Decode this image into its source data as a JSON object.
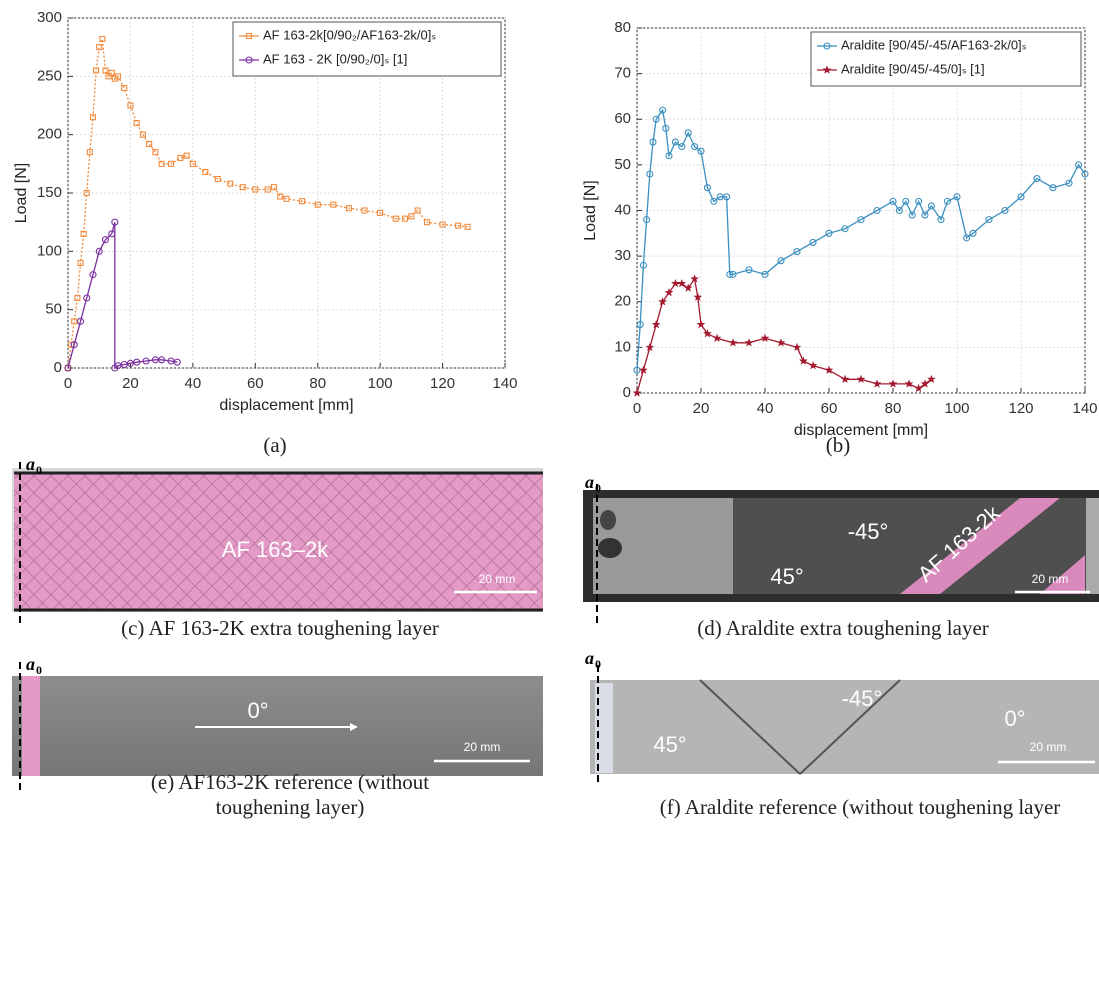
{
  "chart_data": [
    {
      "type": "line",
      "xlabel": "displacement [mm]",
      "ylabel": "Load [N]",
      "xlim": [
        0,
        140
      ],
      "xticks": [
        0,
        20,
        40,
        60,
        80,
        100,
        120,
        140
      ],
      "ylim": [
        0,
        300
      ],
      "yticks": [
        0,
        50,
        100,
        150,
        200,
        250,
        300
      ],
      "grid": true,
      "legend": "upper right",
      "series": [
        {
          "name": "AF 163-2k[0/90₂/AF163-2k/0]ₛ",
          "color": "#f08a3c",
          "marker": "square",
          "x": [
            0,
            1,
            2,
            3,
            4,
            5,
            6,
            7,
            8,
            9,
            10,
            11,
            12,
            13,
            14,
            15,
            16,
            18,
            20,
            22,
            24,
            26,
            28,
            30,
            33,
            36,
            38,
            40,
            44,
            48,
            52,
            56,
            60,
            64,
            66,
            68,
            70,
            75,
            80,
            85,
            90,
            95,
            100,
            105,
            108,
            110,
            112,
            115,
            120,
            125,
            128
          ],
          "values": [
            0,
            20,
            40,
            60,
            90,
            115,
            150,
            185,
            215,
            255,
            275,
            282,
            255,
            250,
            253,
            248,
            250,
            240,
            225,
            210,
            200,
            192,
            185,
            175,
            175,
            180,
            182,
            175,
            168,
            162,
            158,
            155,
            153,
            153,
            155,
            147,
            145,
            143,
            140,
            140,
            137,
            135,
            133,
            128,
            128,
            130,
            135,
            125,
            123,
            122,
            121
          ]
        },
        {
          "name": "AF 163 - 2K [0/90₂/0]ₛ [1]",
          "color": "#7b2fa0",
          "marker": "circle",
          "x": [
            0,
            2,
            4,
            6,
            8,
            10,
            12,
            14,
            15,
            15,
            16,
            18,
            20,
            22,
            25,
            28,
            30,
            33,
            35
          ],
          "values": [
            0,
            20,
            40,
            60,
            80,
            100,
            110,
            115,
            125,
            0,
            2,
            3,
            4,
            5,
            6,
            7,
            7,
            6,
            5
          ]
        }
      ]
    },
    {
      "type": "line",
      "xlabel": "displacement [mm]",
      "ylabel": "Load [N]",
      "xlim": [
        0,
        140
      ],
      "xticks": [
        0,
        20,
        40,
        60,
        80,
        100,
        120,
        140
      ],
      "ylim": [
        0,
        80
      ],
      "yticks": [
        0,
        10,
        20,
        30,
        40,
        50,
        60,
        70,
        80
      ],
      "grid": true,
      "legend": "upper right",
      "series": [
        {
          "name": "Araldite [90/45/-45/AF163-2k/0]ₛ",
          "color": "#3a8fc0",
          "marker": "circle",
          "x": [
            0,
            1,
            2,
            3,
            4,
            5,
            6,
            8,
            9,
            10,
            12,
            14,
            16,
            18,
            20,
            22,
            24,
            26,
            28,
            29,
            30,
            35,
            40,
            45,
            50,
            55,
            60,
            65,
            70,
            75,
            80,
            82,
            84,
            86,
            88,
            90,
            92,
            95,
            97,
            100,
            103,
            105,
            110,
            115,
            120,
            125,
            130,
            135,
            138,
            140
          ],
          "values": [
            5,
            15,
            28,
            38,
            48,
            55,
            60,
            62,
            58,
            52,
            55,
            54,
            57,
            54,
            53,
            45,
            42,
            43,
            43,
            26,
            26,
            27,
            26,
            29,
            31,
            33,
            35,
            36,
            38,
            40,
            42,
            40,
            42,
            39,
            42,
            39,
            41,
            38,
            42,
            43,
            34,
            35,
            38,
            40,
            43,
            47,
            45,
            46,
            50,
            48
          ]
        },
        {
          "name": "Araldite [90/45/-45/0]ₛ [1]",
          "color": "#a5192e",
          "marker": "star",
          "x": [
            0,
            2,
            4,
            6,
            8,
            10,
            12,
            14,
            16,
            18,
            19,
            20,
            22,
            25,
            30,
            35,
            40,
            45,
            50,
            52,
            55,
            60,
            65,
            70,
            75,
            80,
            85,
            88,
            90,
            92
          ],
          "values": [
            0,
            5,
            10,
            15,
            20,
            22,
            24,
            24,
            23,
            25,
            21,
            15,
            13,
            12,
            11,
            11,
            12,
            11,
            10,
            7,
            6,
            5,
            3,
            3,
            2,
            2,
            2,
            1,
            2,
            3
          ]
        }
      ]
    }
  ],
  "chart_captions": [
    "(a)",
    "(b)"
  ],
  "photos": [
    {
      "crack_label": "a",
      "crack_sub": "0",
      "texts": [
        "AF 163–2k",
        "20 mm"
      ],
      "caption": "(c) AF 163-2K extra toughening layer"
    },
    {
      "crack_label": "a",
      "crack_sub": "0",
      "texts": [
        "-45°",
        "45°",
        "AF 163-2k",
        "20 mm"
      ],
      "caption": "(d) Araldite extra toughening layer"
    },
    {
      "crack_label": "a",
      "crack_sub": "0",
      "texts": [
        "0°",
        "20 mm"
      ],
      "caption": "(e) AF163-2K reference (without toughening layer)"
    },
    {
      "crack_label": "a",
      "crack_sub": "0",
      "texts": [
        "-45°",
        "0°",
        "45°",
        "20 mm"
      ],
      "caption": "(f) Araldite reference (without toughening layer"
    }
  ]
}
